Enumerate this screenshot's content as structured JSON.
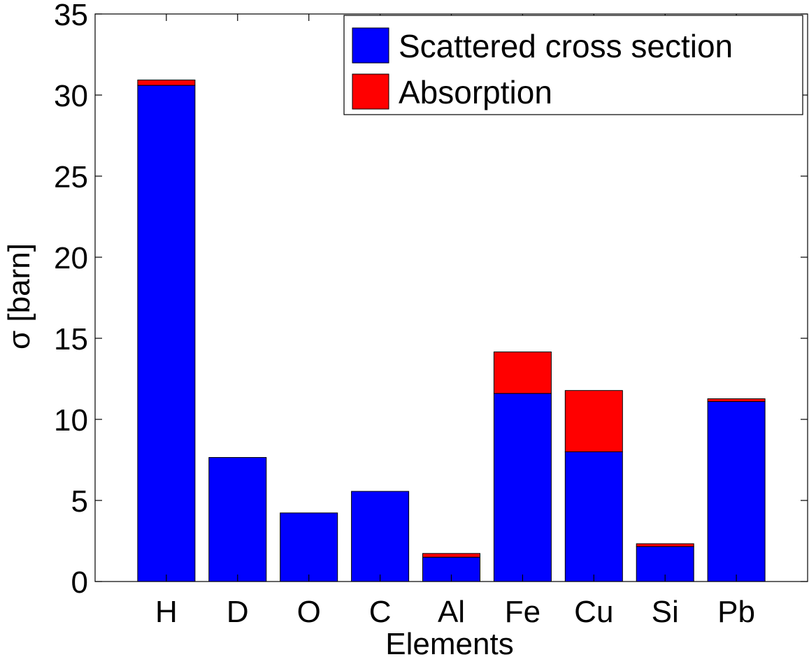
{
  "chart_data": {
    "type": "bar",
    "stacked": true,
    "categories": [
      "H",
      "D",
      "O",
      "C",
      "Al",
      "Fe",
      "Cu",
      "Si",
      "Pb"
    ],
    "series": [
      {
        "name": "Scattered cross section",
        "color": "#0000ff",
        "values": [
          30.6,
          7.65,
          4.23,
          5.56,
          1.5,
          11.6,
          8.0,
          2.16,
          11.1
        ]
      },
      {
        "name": "Absorption",
        "color": "#ff0000",
        "values": [
          0.33,
          0.0,
          0.0,
          0.0,
          0.23,
          2.56,
          3.78,
          0.17,
          0.17
        ]
      }
    ],
    "xlabel": "Elements",
    "ylabel": "σ [barn]",
    "ylim": [
      0,
      35
    ],
    "yticks": [
      "0",
      "5",
      "10",
      "15",
      "20",
      "25",
      "30",
      "35"
    ],
    "grid": false,
    "legend_position": "top-right"
  }
}
